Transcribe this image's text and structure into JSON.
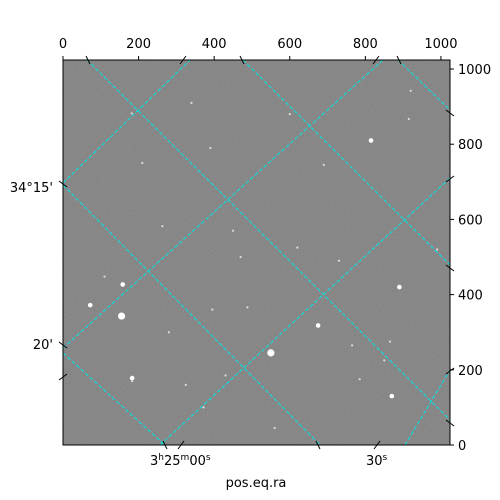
{
  "chart_data": {
    "type": "scatter",
    "title": "",
    "xlabel": "pos.eq.ra",
    "ylabel": "",
    "pixel_axes": {
      "x_range": [
        0,
        1024
      ],
      "y_range": [
        0,
        1024
      ],
      "top_ticks": [
        0,
        200,
        400,
        600,
        800,
        1000
      ],
      "right_ticks": [
        0,
        200,
        400,
        600,
        800,
        1000
      ]
    },
    "world_axes": {
      "ra_tick_labels": [
        {
          "x": 300,
          "label_base": "3",
          "label_h": "h",
          "label_min": "25",
          "label_m": "m",
          "label_sec": "00",
          "label_s": "s"
        },
        {
          "x": 830,
          "label_base": "30",
          "label_s": "s"
        }
      ],
      "dec_tick_labels": [
        {
          "y": 680,
          "label": "34°15'"
        },
        {
          "y": 265,
          "label": "20'"
        }
      ]
    },
    "grid": true,
    "grid_color": "#00e5e5",
    "image_background": "#808080",
    "stars": [
      {
        "x": 155,
        "y": 343,
        "brightness": 3
      },
      {
        "x": 550,
        "y": 245,
        "brightness": 3
      },
      {
        "x": 183,
        "y": 178,
        "brightness": 2
      },
      {
        "x": 158,
        "y": 427,
        "brightness": 2
      },
      {
        "x": 815,
        "y": 810,
        "brightness": 2
      },
      {
        "x": 890,
        "y": 420,
        "brightness": 2
      },
      {
        "x": 72,
        "y": 372,
        "brightness": 2
      },
      {
        "x": 675,
        "y": 318,
        "brightness": 2
      },
      {
        "x": 870,
        "y": 130,
        "brightness": 2
      },
      {
        "x": 488,
        "y": 366,
        "brightness": 1
      },
      {
        "x": 850,
        "y": 225,
        "brightness": 1
      },
      {
        "x": 785,
        "y": 175,
        "brightness": 1
      },
      {
        "x": 183,
        "y": 170,
        "brightness": 1
      },
      {
        "x": 450,
        "y": 570,
        "brightness": 1
      },
      {
        "x": 470,
        "y": 500,
        "brightness": 1
      },
      {
        "x": 730,
        "y": 490,
        "brightness": 1
      },
      {
        "x": 263,
        "y": 582,
        "brightness": 1
      },
      {
        "x": 210,
        "y": 750,
        "brightness": 1
      },
      {
        "x": 182,
        "y": 882,
        "brightness": 1
      },
      {
        "x": 920,
        "y": 942,
        "brightness": 1
      },
      {
        "x": 915,
        "y": 867,
        "brightness": 1
      },
      {
        "x": 865,
        "y": 275,
        "brightness": 1
      },
      {
        "x": 110,
        "y": 448,
        "brightness": 1
      },
      {
        "x": 430,
        "y": 185,
        "brightness": 1
      },
      {
        "x": 620,
        "y": 525,
        "brightness": 1
      },
      {
        "x": 395,
        "y": 360,
        "brightness": 1
      },
      {
        "x": 560,
        "y": 45,
        "brightness": 1
      },
      {
        "x": 372,
        "y": 100,
        "brightness": 1
      },
      {
        "x": 325,
        "y": 160,
        "brightness": 1
      },
      {
        "x": 340,
        "y": 910,
        "brightness": 1
      },
      {
        "x": 600,
        "y": 880,
        "brightness": 1
      },
      {
        "x": 690,
        "y": 745,
        "brightness": 1
      },
      {
        "x": 390,
        "y": 790,
        "brightness": 1
      },
      {
        "x": 280,
        "y": 300,
        "brightness": 1
      },
      {
        "x": 990,
        "y": 520,
        "brightness": 1
      },
      {
        "x": 765,
        "y": 265,
        "brightness": 1
      }
    ]
  }
}
